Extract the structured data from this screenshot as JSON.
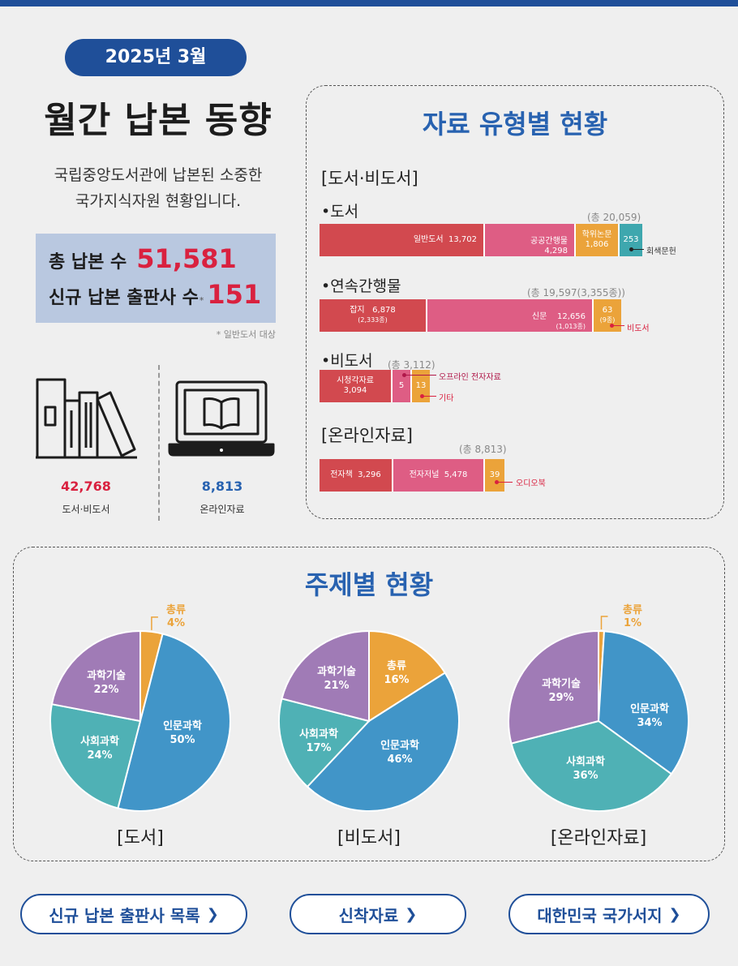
{
  "header": {
    "date_pill": "2025년 3월",
    "title": "월간 납본 동향",
    "description_line1": "국립중앙도서관에 납본된 소중한",
    "description_line2": "국가지식자원 현황입니다."
  },
  "summary": {
    "total_label": "총 납본 수",
    "total_value": "51,581",
    "new_publishers_label": "신규 납본 출판사 수",
    "new_publishers_mark": "*",
    "new_publishers_value": "151",
    "note": "* 일반도서 대상"
  },
  "counts": [
    {
      "value": "42,768",
      "label": "도서·비도서",
      "color": "#d9213f",
      "icon": "books-icon"
    },
    {
      "value": "8,813",
      "label": "온라인자료",
      "color": "#2862b0",
      "icon": "laptop-book-icon"
    }
  ],
  "material_types": {
    "title": "자료 유형별 현황",
    "offline_header": "[도서·비도서]",
    "online_header": "[온라인자료]",
    "books": {
      "label": "•도서",
      "total": "(총 20,059)",
      "segments": [
        {
          "name": "일반도서",
          "value": "13,702",
          "count": 13702,
          "color": "#d2494f"
        },
        {
          "name": "공공간행물",
          "value": "4,298",
          "count": 4298,
          "color": "#de5d84"
        },
        {
          "name": "학위논문",
          "value": "1,806",
          "count": 1806,
          "color": "#eba33a"
        },
        {
          "name": "",
          "value": "253",
          "count": 253,
          "color": "#3ea7ae"
        }
      ],
      "callout": "회색문헌"
    },
    "serials": {
      "label": "•연속간행물",
      "total": "(총 19,597(3,355종))",
      "segments": [
        {
          "name": "잡지",
          "value": "6,878",
          "sub": "(2,333종)",
          "count": 6878
        },
        {
          "name": "신문",
          "value": "12,656",
          "sub": "(1,013종)",
          "count": 12656
        },
        {
          "name": "",
          "value": "63",
          "sub": "(9종)",
          "count": 63
        }
      ],
      "callout": "비도서"
    },
    "nonbooks": {
      "label": "•비도서",
      "total": "(총 3,112)",
      "segments": [
        {
          "name": "시청각자료",
          "value": "3,094",
          "count": 3094
        },
        {
          "name": "",
          "value": "5",
          "count": 5
        },
        {
          "name": "",
          "value": "13",
          "count": 13
        }
      ],
      "callout_offline": "오프라인 전자자료",
      "callout_other": "기타"
    },
    "online": {
      "total": "(총 8,813)",
      "segments": [
        {
          "name": "전자책",
          "value": "3,296",
          "count": 3296
        },
        {
          "name": "전자저널",
          "value": "5,478",
          "count": 5478
        },
        {
          "name": "",
          "value": "39",
          "count": 39
        }
      ],
      "callout": "오디오북"
    }
  },
  "subjects": {
    "title": "주제별 현황",
    "charts": [
      {
        "caption": "[도서]",
        "slices": [
          {
            "label": "총류",
            "pct": "4%",
            "value": 4,
            "color": "#eba33a"
          },
          {
            "label": "인문과학",
            "pct": "50%",
            "value": 50,
            "color": "#4195c8"
          },
          {
            "label": "사회과학",
            "pct": "24%",
            "value": 24,
            "color": "#4fb1b5"
          },
          {
            "label": "과학기술",
            "pct": "22%",
            "value": 22,
            "color": "#a07bb6"
          }
        ]
      },
      {
        "caption": "[비도서]",
        "slices": [
          {
            "label": "총류",
            "pct": "16%",
            "value": 16,
            "color": "#eba33a"
          },
          {
            "label": "인문과학",
            "pct": "46%",
            "value": 46,
            "color": "#4195c8"
          },
          {
            "label": "사회과학",
            "pct": "17%",
            "value": 17,
            "color": "#4fb1b5"
          },
          {
            "label": "과학기술",
            "pct": "21%",
            "value": 21,
            "color": "#a07bb6"
          }
        ]
      },
      {
        "caption": "[온라인자료]",
        "slices": [
          {
            "label": "총류",
            "pct": "1%",
            "value": 1,
            "color": "#eba33a"
          },
          {
            "label": "인문과학",
            "pct": "34%",
            "value": 34,
            "color": "#4195c8"
          },
          {
            "label": "사회과학",
            "pct": "36%",
            "value": 36,
            "color": "#4fb1b5"
          },
          {
            "label": "과학기술",
            "pct": "29%",
            "value": 29,
            "color": "#a07bb6"
          }
        ]
      }
    ]
  },
  "buttons": {
    "new_publishers": "신규 납본 출판사 목록",
    "new_arrivals": "신착자료",
    "national_bibliography": "대한민국 국가서지",
    "chevron": "❯"
  }
}
